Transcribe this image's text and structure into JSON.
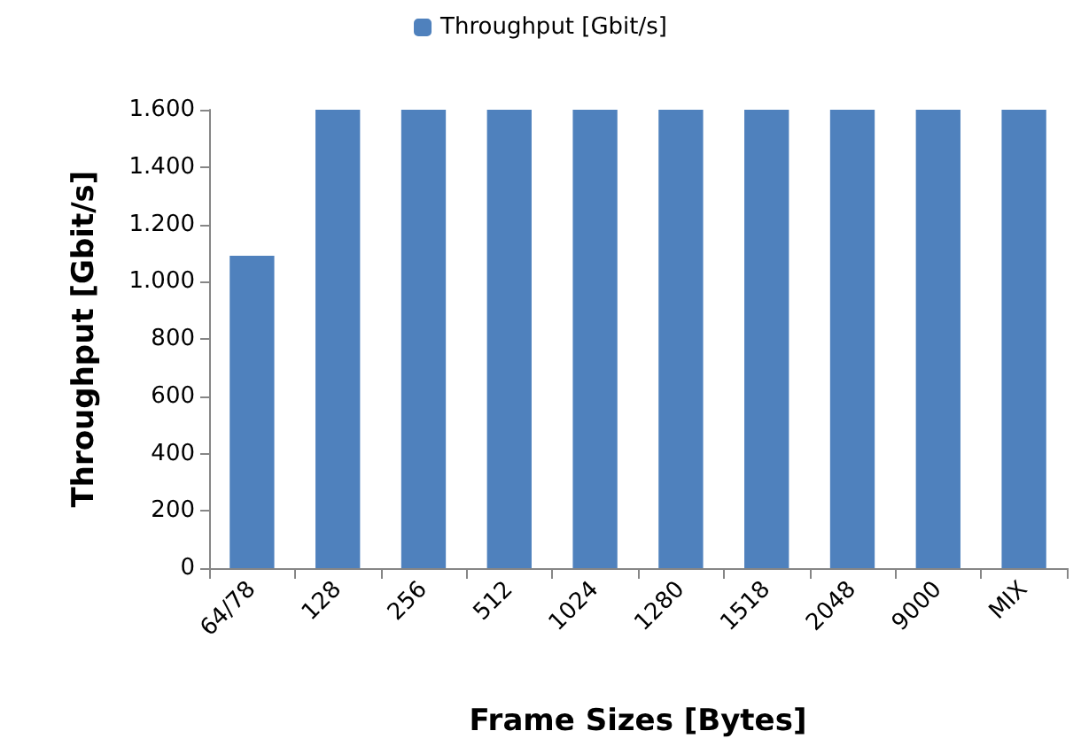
{
  "chart_data": {
    "type": "bar",
    "xlabel": "Frame Sizes [Bytes]",
    "ylabel": "Throughput [Gbit/s]",
    "categories": [
      "64/78",
      "128",
      "256",
      "512",
      "1024",
      "1280",
      "1518",
      "2048",
      "9000",
      "MIX"
    ],
    "series": [
      {
        "name": "Throughput [Gbit/s]",
        "color": "#4f81bd",
        "values": [
          1090,
          1600,
          1600,
          1600,
          1600,
          1600,
          1600,
          1600,
          1600,
          1600
        ]
      }
    ],
    "ylim": [
      0,
      1600
    ],
    "yticks": [
      0,
      200,
      400,
      600,
      800,
      {
        "value": 1000,
        "label": "1.000"
      },
      {
        "value": 1200,
        "label": "1.200"
      },
      {
        "value": 1400,
        "label": "1.400"
      },
      {
        "value": 1600,
        "label": "1.600"
      }
    ],
    "grid": false,
    "legend": "top"
  }
}
